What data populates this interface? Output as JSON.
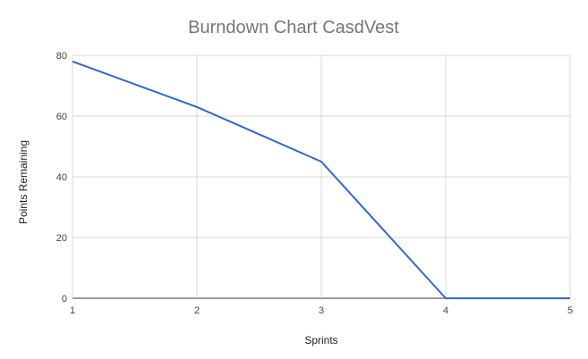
{
  "chart_data": {
    "type": "line",
    "title": "Burndown Chart CasdVest",
    "xlabel": "Sprints",
    "ylabel": "Points Remaining",
    "x": [
      1,
      2,
      3,
      4,
      5
    ],
    "x_ticks": [
      "1",
      "2",
      "3",
      "4",
      "5"
    ],
    "y_ticks": [
      "0",
      "20",
      "40",
      "60",
      "80"
    ],
    "ylim": [
      0,
      80
    ],
    "xlim": [
      1,
      5
    ],
    "grid": true,
    "legend": "none",
    "series": [
      {
        "values": [
          78,
          63,
          45,
          0,
          0
        ],
        "color": "#3366cc"
      }
    ]
  }
}
